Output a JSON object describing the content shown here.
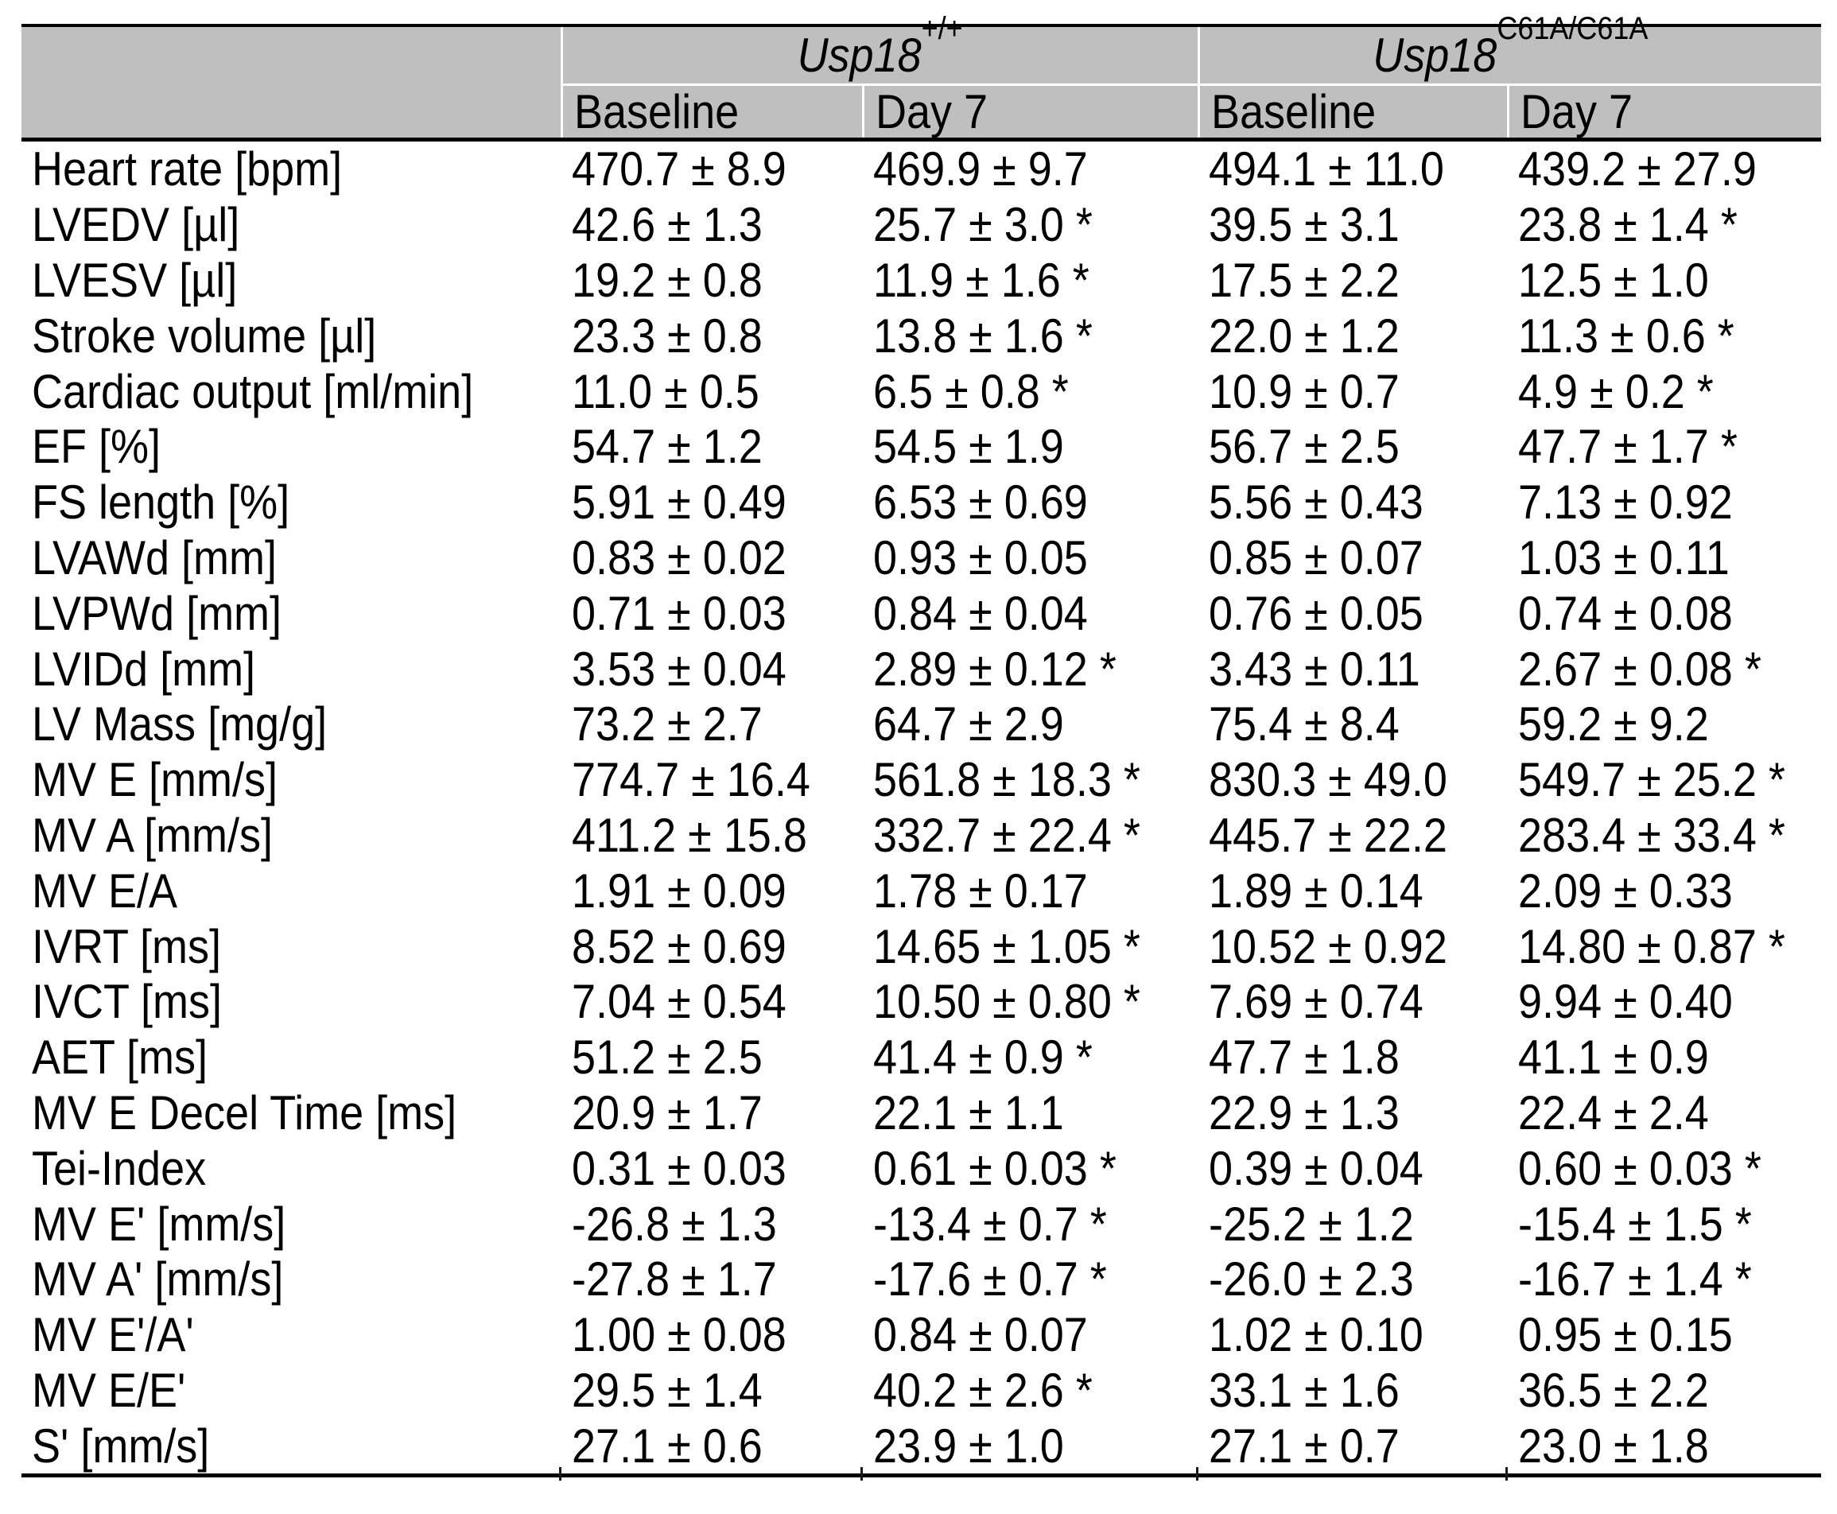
{
  "colors": {
    "header_bg": "#bfbfbf",
    "rule": "#000000",
    "cell_separator": "#ffffff"
  },
  "table": {
    "groups": [
      {
        "name_main": "Usp18",
        "name_sup": "+/+"
      },
      {
        "name_main": "Usp18",
        "name_sup": "C61A/C61A"
      }
    ],
    "subheaders": [
      "Baseline",
      "Day 7",
      "Baseline",
      "Day 7"
    ],
    "rows": [
      {
        "label": "Heart rate [bpm]",
        "values": [
          "470.7 ± 8.9",
          "469.9 ± 9.7",
          "494.1 ± 11.0",
          "439.2 ± 27.9"
        ]
      },
      {
        "label": "LVEDV [µl]",
        "values": [
          "42.6 ± 1.3",
          "25.7 ± 3.0 *",
          "39.5 ± 3.1",
          "23.8 ± 1.4 *"
        ]
      },
      {
        "label": "LVESV [µl]",
        "values": [
          "19.2 ± 0.8",
          "11.9 ± 1.6 *",
          "17.5 ± 2.2",
          "12.5 ± 1.0"
        ]
      },
      {
        "label": "Stroke volume [µl]",
        "values": [
          "23.3 ± 0.8",
          "13.8 ± 1.6 *",
          "22.0 ± 1.2",
          "11.3 ± 0.6 *"
        ]
      },
      {
        "label": "Cardiac output [ml/min]",
        "values": [
          "11.0 ± 0.5",
          "6.5 ± 0.8 *",
          "10.9 ± 0.7",
          "4.9 ± 0.2 *"
        ]
      },
      {
        "label": "EF [%]",
        "values": [
          "54.7 ± 1.2",
          "54.5 ± 1.9",
          "56.7 ± 2.5",
          "47.7 ± 1.7 *"
        ]
      },
      {
        "label": "FS length [%]",
        "values": [
          "5.91 ± 0.49",
          "6.53 ± 0.69",
          "5.56 ± 0.43",
          "7.13 ± 0.92"
        ]
      },
      {
        "label": "LVAWd [mm]",
        "values": [
          "0.83 ± 0.02",
          "0.93 ± 0.05",
          "0.85 ± 0.07",
          "1.03 ± 0.11"
        ]
      },
      {
        "label": "LVPWd [mm]",
        "values": [
          "0.71 ± 0.03",
          "0.84 ± 0.04",
          "0.76 ± 0.05",
          "0.74 ± 0.08"
        ]
      },
      {
        "label": "LVIDd [mm]",
        "values": [
          "3.53 ± 0.04",
          "2.89 ± 0.12 *",
          "3.43 ± 0.11",
          "2.67 ± 0.08 *"
        ]
      },
      {
        "label": "LV Mass [mg/g]",
        "values": [
          "73.2 ± 2.7",
          "64.7 ± 2.9",
          "75.4 ± 8.4",
          "59.2 ± 9.2"
        ]
      },
      {
        "label": "MV E [mm/s]",
        "values": [
          "774.7 ± 16.4",
          "561.8 ± 18.3 *",
          "830.3 ± 49.0",
          "549.7 ± 25.2 *"
        ]
      },
      {
        "label": "MV A [mm/s]",
        "values": [
          "411.2 ± 15.8",
          "332.7 ± 22.4 *",
          "445.7 ± 22.2",
          "283.4 ± 33.4 *"
        ]
      },
      {
        "label": "MV E/A",
        "values": [
          "1.91 ± 0.09",
          "1.78 ± 0.17",
          "1.89 ± 0.14",
          "2.09 ± 0.33"
        ]
      },
      {
        "label": "IVRT [ms]",
        "values": [
          "8.52 ± 0.69",
          "14.65 ± 1.05 *",
          "10.52 ± 0.92",
          "14.80 ± 0.87 *"
        ]
      },
      {
        "label": "IVCT [ms]",
        "values": [
          "7.04 ± 0.54",
          "10.50 ± 0.80 *",
          "7.69 ± 0.74",
          "9.94 ± 0.40"
        ]
      },
      {
        "label": "AET [ms]",
        "values": [
          "51.2 ± 2.5",
          "41.4 ± 0.9 *",
          "47.7 ± 1.8",
          "41.1 ± 0.9"
        ]
      },
      {
        "label": "MV E Decel Time [ms]",
        "values": [
          "20.9 ± 1.7",
          "22.1 ± 1.1",
          "22.9 ± 1.3",
          "22.4 ± 2.4"
        ]
      },
      {
        "label": "Tei-Index",
        "values": [
          "0.31 ± 0.03",
          "0.61 ± 0.03 *",
          "0.39 ± 0.04",
          "0.60 ± 0.03 *"
        ]
      },
      {
        "label": "MV E' [mm/s]",
        "values": [
          "-26.8 ± 1.3",
          "-13.4 ± 0.7 *",
          "-25.2 ± 1.2",
          "-15.4 ± 1.5 *"
        ]
      },
      {
        "label": "MV A' [mm/s]",
        "values": [
          "-27.8 ± 1.7",
          "-17.6 ± 0.7 *",
          "-26.0 ± 2.3",
          "-16.7 ± 1.4 *"
        ]
      },
      {
        "label": "MV E'/A'",
        "values": [
          "1.00 ± 0.08",
          "0.84 ± 0.07",
          "1.02 ± 0.10",
          "0.95 ± 0.15"
        ]
      },
      {
        "label": "MV E/E'",
        "values": [
          "29.5 ± 1.4",
          "40.2 ± 2.6 *",
          "33.1 ± 1.6",
          "36.5 ± 2.2"
        ]
      },
      {
        "label": "S' [mm/s]",
        "values": [
          "27.1 ± 0.6",
          "23.9 ± 1.0",
          "27.1 ± 0.7",
          "23.0 ± 1.8"
        ]
      }
    ]
  }
}
